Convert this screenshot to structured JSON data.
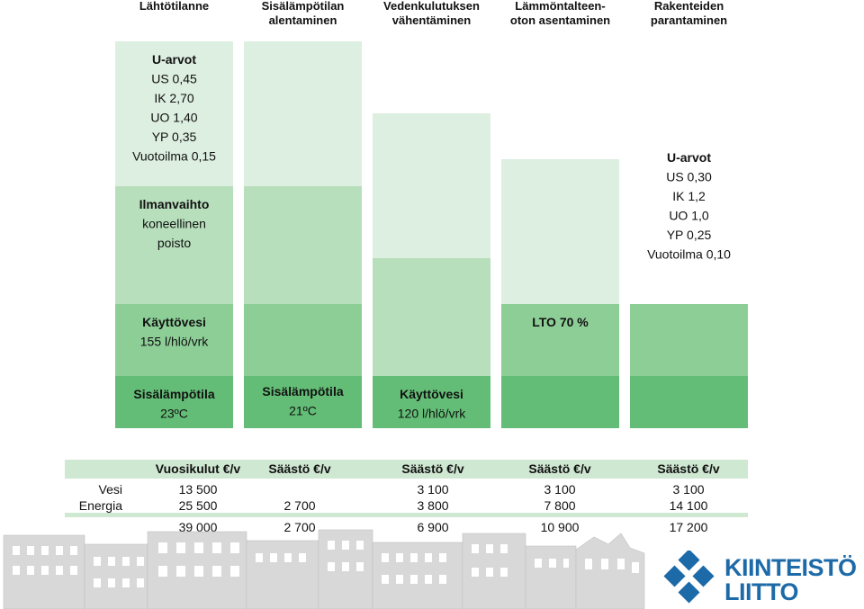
{
  "chart_data": {
    "type": "bar",
    "stacked": true,
    "categories": [
      "Lähtötilanne",
      "Sisälämpötilan\nalentaminen",
      "Vedenkulutuksen\nvähentäminen",
      "Lämmöntalteen-\noton asentaminen",
      "Rakenteiden\nparantaminen"
    ],
    "layers": [
      "Sisälämpötila",
      "Käyttövesi",
      "Ilmanvaihto",
      "U-arvot"
    ],
    "segments": [
      [
        1.0,
        1.0,
        1.0,
        1.0
      ],
      [
        1.0,
        1.0,
        1.0,
        1.0
      ],
      [
        1.0,
        0.0,
        1.0,
        1.0
      ],
      [
        1.0,
        1.0,
        0.0,
        1.0
      ],
      [
        1.0,
        1.0,
        0.0,
        0.0
      ]
    ],
    "layer_colors": [
      "#63bd76",
      "#8dce97",
      "#b7dfbc",
      "#ddefe0"
    ],
    "annotations": [
      {
        "bar": 0,
        "layer": 3,
        "lines": [
          "U-arvot",
          "US 0,45",
          "IK 2,70",
          "UO 1,40",
          "YP 0,35",
          "Vuotoilma 0,15"
        ],
        "bold": [
          0
        ]
      },
      {
        "bar": 0,
        "layer": 2,
        "lines": [
          "Ilmanvaihto",
          "koneellinen",
          "poisto"
        ],
        "bold": [
          0
        ]
      },
      {
        "bar": 0,
        "layer": 1,
        "lines": [
          "Käyttövesi",
          "155 l/hlö/vrk"
        ],
        "bold": [
          0
        ]
      },
      {
        "bar": 0,
        "layer": 0,
        "lines": [
          "Sisälämpötila",
          "23ºC"
        ],
        "bold": [
          0
        ]
      },
      {
        "bar": 1,
        "layer": 0,
        "lines": [
          "Sisälämpötila",
          "21ºC"
        ],
        "bold": [
          0
        ]
      },
      {
        "bar": 2,
        "layer": 1,
        "lines": [
          "Käyttövesi",
          "120 l/hlö/vrk"
        ],
        "bold": [
          0
        ]
      },
      {
        "bar": 3,
        "layer": 2,
        "lines": [
          "LTO 70 %"
        ],
        "bold": [
          0
        ]
      },
      {
        "bar": 4,
        "layer": 3,
        "lines": [
          "U-arvot",
          "US 0,30",
          "IK 1,2",
          "UO 1,0",
          "YP 0,25",
          "Vuotoilma 0,10"
        ],
        "bold": [
          0
        ]
      }
    ],
    "xlabel": "",
    "ylabel": ""
  },
  "costs_table": {
    "headers": [
      "",
      "Vuosikulut €/v",
      "Säästö €/v",
      "Säästö €/v",
      "Säästö €/v",
      "Säästö €/v"
    ],
    "rows": [
      [
        "Vesi",
        "13 500",
        "",
        "3 100",
        "3 100",
        "3 100"
      ],
      [
        "Energia",
        "25 500",
        "2 700",
        "3 800",
        "7 800",
        "14 100"
      ]
    ],
    "total": [
      "",
      "39 000",
      "2 700",
      "6 900",
      "10 900",
      "17 200"
    ]
  },
  "brand": {
    "line1": "KIINTEISTÖ",
    "line2": "LIITTO",
    "color": "#1d6aa8"
  }
}
